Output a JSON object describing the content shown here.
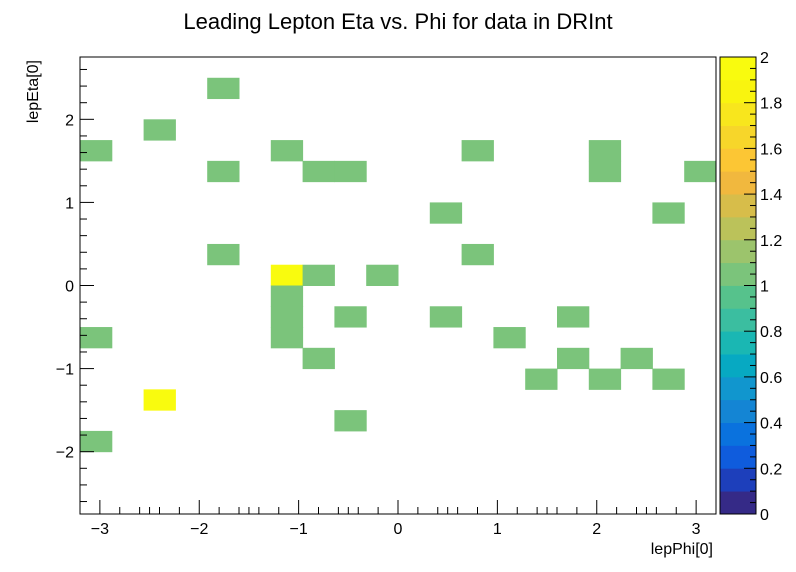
{
  "chart_data": {
    "type": "heatmap",
    "title": "Leading Lepton Eta vs. Phi for data in DRInt",
    "xlabel": "lepPhi[0]",
    "ylabel": "lepEta[0]",
    "xlim": [
      -3.2,
      3.2
    ],
    "ylim": [
      -2.75,
      2.75
    ],
    "x_bins": 20,
    "y_bins": 22,
    "x_ticks": [
      -3,
      -2,
      -1,
      0,
      1,
      2,
      3
    ],
    "x_tick_labels": [
      "−3",
      "−2",
      "−1",
      "0",
      "1",
      "2",
      "3"
    ],
    "y_ticks": [
      -2,
      -1,
      0,
      1,
      2
    ],
    "y_tick_labels": [
      "−2",
      "−1",
      "0",
      "1",
      "2"
    ],
    "z_range": [
      0,
      2
    ],
    "z_ticks": [
      0,
      0.2,
      0.4,
      0.6,
      0.8,
      1,
      1.2,
      1.4,
      1.6,
      1.8,
      2
    ],
    "z_tick_labels": [
      "0",
      "0.2",
      "0.4",
      "0.6",
      "0.8",
      "1",
      "1.2",
      "1.4",
      "1.6",
      "1.8",
      "2"
    ],
    "palette": [
      "#352a87",
      "#1d3fbb",
      "#0f5cdd",
      "#0a72de",
      "#1485d4",
      "#1196ce",
      "#07a9c2",
      "#1ab7b3",
      "#3bbea0",
      "#56c28c",
      "#7bc47b",
      "#9cc46c",
      "#bbc25a",
      "#d7bd4a",
      "#f1b83e",
      "#fcc634",
      "#f7d62a",
      "#f8e61d",
      "#f9f40f",
      "#f9fb0e"
    ],
    "cells": [
      {
        "phi": -1.92,
        "eta": 2.38,
        "count": 1
      },
      {
        "phi": -2.56,
        "eta": 1.75,
        "count": 1
      },
      {
        "phi": -3.04,
        "eta": 1.5,
        "count": 1
      },
      {
        "phi": -1.28,
        "eta": 1.5,
        "count": 1
      },
      {
        "phi": 0.8,
        "eta": 1.5,
        "count": 1
      },
      {
        "phi": 2.08,
        "eta": 1.5,
        "count": 1
      },
      {
        "phi": -1.92,
        "eta": 1.25,
        "count": 1
      },
      {
        "phi": -0.96,
        "eta": 1.25,
        "count": 1
      },
      {
        "phi": -0.64,
        "eta": 1.25,
        "count": 1
      },
      {
        "phi": 2.08,
        "eta": 1.25,
        "count": 1
      },
      {
        "phi": 3.04,
        "eta": 1.25,
        "count": 1
      },
      {
        "phi": 0.48,
        "eta": 0.75,
        "count": 1
      },
      {
        "phi": 2.72,
        "eta": 0.75,
        "count": 1
      },
      {
        "phi": -1.92,
        "eta": 0.38,
        "count": 1
      },
      {
        "phi": 0.8,
        "eta": 0.38,
        "count": 1
      },
      {
        "phi": -1.28,
        "eta": 0.12,
        "count": 2
      },
      {
        "phi": -0.96,
        "eta": 0.12,
        "count": 1
      },
      {
        "phi": -0.32,
        "eta": 0.12,
        "count": 1
      },
      {
        "phi": -1.28,
        "eta": -0.12,
        "count": 1
      },
      {
        "phi": -1.28,
        "eta": -0.38,
        "count": 1
      },
      {
        "phi": -0.64,
        "eta": -0.38,
        "count": 1
      },
      {
        "phi": 0.48,
        "eta": -0.38,
        "count": 1
      },
      {
        "phi": 1.76,
        "eta": -0.38,
        "count": 1
      },
      {
        "phi": -3.04,
        "eta": -0.62,
        "count": 1
      },
      {
        "phi": -1.28,
        "eta": -0.62,
        "count": 1
      },
      {
        "phi": 1.12,
        "eta": -0.62,
        "count": 1
      },
      {
        "phi": -0.96,
        "eta": -1.0,
        "count": 1
      },
      {
        "phi": 1.76,
        "eta": -1.0,
        "count": 1
      },
      {
        "phi": 2.4,
        "eta": -1.0,
        "count": 1
      },
      {
        "phi": 1.44,
        "eta": -1.25,
        "count": 1
      },
      {
        "phi": 2.08,
        "eta": -1.25,
        "count": 1
      },
      {
        "phi": 2.72,
        "eta": -1.25,
        "count": 1
      },
      {
        "phi": -2.56,
        "eta": -1.5,
        "count": 2
      },
      {
        "phi": -0.64,
        "eta": -1.75,
        "count": 1
      },
      {
        "phi": -3.04,
        "eta": -2.0,
        "count": 1
      }
    ]
  }
}
